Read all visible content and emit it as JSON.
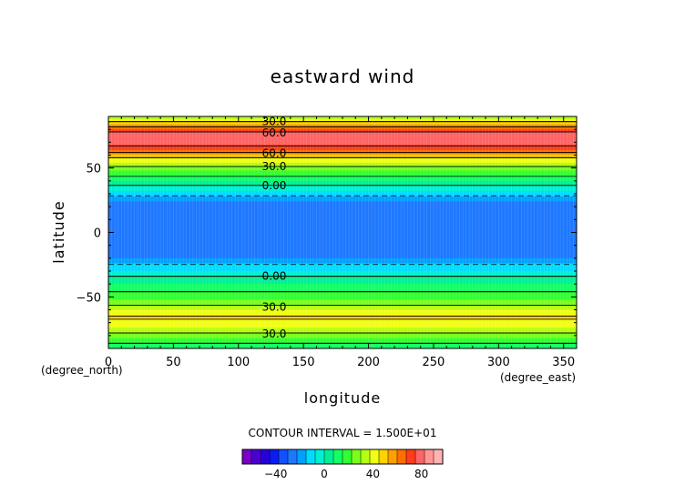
{
  "chart_data": {
    "type": "heatmap",
    "title": "eastward wind",
    "xlabel": "longitude",
    "ylabel": "latitude",
    "x_unit": "(degree_east)",
    "y_unit": "(degree_north)",
    "xlim": [
      0,
      360
    ],
    "ylim": [
      -90,
      90
    ],
    "x_ticks": [
      0,
      50,
      100,
      150,
      200,
      250,
      300,
      350
    ],
    "y_ticks": [
      -50,
      0,
      50
    ],
    "contour_interval_text": "CONTOUR INTERVAL = 1.500E+01",
    "contour_labels": [
      {
        "value": "30.0",
        "lat": 87
      },
      {
        "value": "60.0",
        "lat": 78
      },
      {
        "value": "60.0",
        "lat": 62
      },
      {
        "value": "30.0",
        "lat": 52
      },
      {
        "value": "0.00",
        "lat": 37
      },
      {
        "value": "0.00",
        "lat": -33
      },
      {
        "value": "30.0",
        "lat": -57
      },
      {
        "value": "30.0",
        "lat": -78
      }
    ],
    "zonal_profile": [
      {
        "lat": 90,
        "u": 30
      },
      {
        "lat": 86,
        "u": 45
      },
      {
        "lat": 82,
        "u": 60
      },
      {
        "lat": 78,
        "u": 75
      },
      {
        "lat": 74,
        "u": 80
      },
      {
        "lat": 70,
        "u": 82
      },
      {
        "lat": 66,
        "u": 72
      },
      {
        "lat": 62,
        "u": 60
      },
      {
        "lat": 58,
        "u": 45
      },
      {
        "lat": 54,
        "u": 35
      },
      {
        "lat": 50,
        "u": 28
      },
      {
        "lat": 46,
        "u": 20
      },
      {
        "lat": 42,
        "u": 12
      },
      {
        "lat": 38,
        "u": 3
      },
      {
        "lat": 34,
        "u": -5
      },
      {
        "lat": 30,
        "u": -12
      },
      {
        "lat": 26,
        "u": -20
      },
      {
        "lat": 22,
        "u": -28
      },
      {
        "lat": 0,
        "u": -29
      },
      {
        "lat": -18,
        "u": -28
      },
      {
        "lat": -22,
        "u": -20
      },
      {
        "lat": -26,
        "u": -13
      },
      {
        "lat": -30,
        "u": -6
      },
      {
        "lat": -34,
        "u": 0
      },
      {
        "lat": -38,
        "u": 5
      },
      {
        "lat": -42,
        "u": 10
      },
      {
        "lat": -46,
        "u": 15
      },
      {
        "lat": -50,
        "u": 20
      },
      {
        "lat": -54,
        "u": 25
      },
      {
        "lat": -58,
        "u": 33
      },
      {
        "lat": -62,
        "u": 42
      },
      {
        "lat": -66,
        "u": 46
      },
      {
        "lat": -70,
        "u": 43
      },
      {
        "lat": -74,
        "u": 36
      },
      {
        "lat": -78,
        "u": 30
      },
      {
        "lat": -82,
        "u": 22
      },
      {
        "lat": -86,
        "u": 15
      },
      {
        "lat": -90,
        "u": 10
      }
    ],
    "colorbar": {
      "levels": [
        -60,
        -52.5,
        -45,
        -37.5,
        -30,
        -22.5,
        -15,
        -7.5,
        0,
        7.5,
        15,
        22.5,
        30,
        37.5,
        45,
        52.5,
        60,
        67.5,
        75,
        82.5,
        90
      ],
      "colors": [
        "#7a00c8",
        "#4b00d2",
        "#2800dc",
        "#0a1cf0",
        "#1450ff",
        "#1e78ff",
        "#00a0ff",
        "#00dcff",
        "#00f0d2",
        "#00f096",
        "#14ff64",
        "#32ff32",
        "#78ff1e",
        "#b4ff14",
        "#f0ff14",
        "#ffd200",
        "#ffa000",
        "#ff6e00",
        "#ff3c1e",
        "#ff6464",
        "#ff9696",
        "#ffb4b4"
      ],
      "tick_labels": [
        {
          "value": -40,
          "label": "−40"
        },
        {
          "value": 0,
          "label": "0"
        },
        {
          "value": 40,
          "label": "40"
        },
        {
          "value": 80,
          "label": "80"
        }
      ]
    }
  }
}
